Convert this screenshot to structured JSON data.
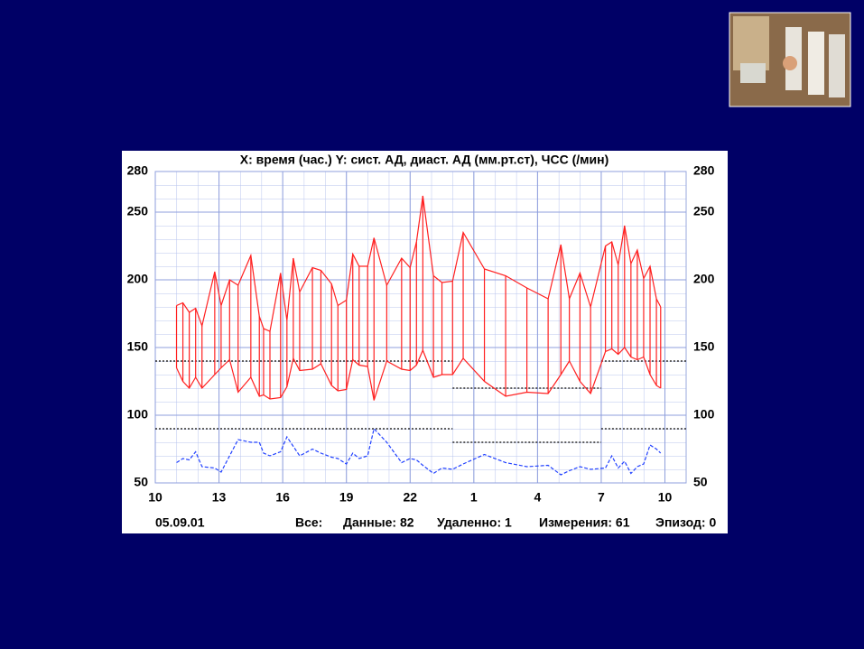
{
  "chart_data": {
    "type": "bp-monitor",
    "title": "X: время (час.)  Y: сист. АД, диаст. АД (мм.рт.ст), ЧСС (/мин)",
    "date": "05.09.01",
    "footer": [
      "Все:",
      "Данные: 82",
      "Удаленно: 1",
      "Измерения: 61",
      "Эпизод: 0"
    ],
    "x": [
      11.0,
      11.3,
      11.6,
      11.9,
      12.2,
      12.8,
      13.1,
      13.5,
      13.9,
      14.5,
      14.9,
      15.1,
      15.4,
      15.9,
      16.2,
      16.5,
      16.8,
      17.4,
      17.8,
      18.3,
      18.6,
      19.0,
      19.3,
      19.6,
      20.0,
      20.3,
      20.9,
      21.6,
      22.0,
      22.3,
      22.6,
      23.1,
      23.5,
      24.0,
      24.5,
      25.5,
      26.5,
      27.5,
      28.5,
      29.1,
      29.5,
      30.0,
      30.5,
      31.2,
      31.5,
      31.8,
      32.1,
      32.4,
      32.7,
      33.0,
      33.3,
      33.6,
      33.8
    ],
    "series": [
      {
        "color": "#ff2020",
        "values": [
          181,
          183,
          176,
          179,
          166,
          206,
          181,
          200,
          196,
          218,
          173,
          164,
          162,
          205,
          170,
          216,
          191,
          209,
          207,
          197,
          181,
          185,
          219,
          210,
          210,
          231,
          196,
          216,
          209,
          228,
          262,
          203,
          198,
          199,
          235,
          208,
          203,
          194,
          186,
          226,
          186,
          205,
          180,
          225,
          228,
          211,
          240,
          212,
          222,
          201,
          210,
          186,
          180
        ]
      },
      {
        "color": "#ff2020",
        "values": [
          135,
          125,
          120,
          128,
          120,
          130,
          135,
          141,
          117,
          128,
          114,
          115,
          112,
          113,
          121,
          142,
          133,
          134,
          138,
          122,
          118,
          119,
          141,
          137,
          136,
          111,
          140,
          134,
          133,
          137,
          148,
          128,
          130,
          130,
          142,
          125,
          114,
          117,
          116,
          130,
          140,
          125,
          116,
          147,
          149,
          145,
          150,
          143,
          141,
          143,
          130,
          122,
          120
        ]
      },
      {
        "color": "#2040ff",
        "dashed": true,
        "values": [
          65,
          68,
          67,
          73,
          62,
          61,
          58,
          70,
          82,
          80,
          80,
          72,
          70,
          73,
          84,
          77,
          70,
          75,
          72,
          69,
          68,
          64,
          72,
          68,
          70,
          90,
          80,
          65,
          68,
          67,
          63,
          57,
          61,
          60,
          64,
          71,
          65,
          62,
          63,
          56,
          59,
          62,
          60,
          61,
          70,
          61,
          66,
          57,
          62,
          64,
          78,
          75,
          72
        ]
      }
    ],
    "thresholds": [
      {
        "from": 10,
        "to": 24,
        "value": 140
      },
      {
        "from": 24,
        "to": 31,
        "value": 120
      },
      {
        "from": 31,
        "to": 35,
        "value": 140
      },
      {
        "from": 10,
        "to": 24,
        "value": 90
      },
      {
        "from": 24,
        "to": 31,
        "value": 80
      },
      {
        "from": 31,
        "to": 35,
        "value": 90
      }
    ],
    "xlim": [
      10,
      35
    ],
    "xticks": [
      10,
      13,
      16,
      19,
      22,
      {
        "value": 25,
        "label": "1"
      },
      {
        "value": 28,
        "label": "4"
      },
      {
        "value": 31,
        "label": "7"
      },
      {
        "value": 34,
        "label": "10"
      }
    ],
    "ylim": [
      50,
      280
    ],
    "yticks": [
      50,
      100,
      150,
      200,
      250,
      280
    ],
    "grid": true
  }
}
